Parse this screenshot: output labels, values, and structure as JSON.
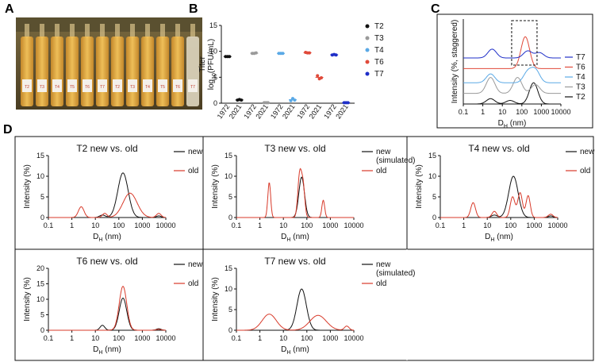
{
  "panel_labels": [
    "A",
    "B",
    "C",
    "D"
  ],
  "colors": {
    "T2": "#111111",
    "T3": "#9a9a9a",
    "T4": "#5aa9e6",
    "T6": "#e04a3a",
    "T7": "#1f2fc8",
    "new": "#111111",
    "old": "#d83a2a"
  },
  "photo": {
    "description_icon": "vials-photo",
    "vial_labels": [
      "T2",
      "T3",
      "T4",
      "T5",
      "T6",
      "T7",
      "T2",
      "T3",
      "T4",
      "T5",
      "T6",
      "T7"
    ]
  },
  "chart_data": [
    {
      "id": "B",
      "type": "scatter",
      "title": "",
      "ylabel": "Titer",
      "ylabel2_parts": [
        "log",
        "10",
        "(PFU/mL)"
      ],
      "ylim": [
        0,
        15
      ],
      "yticks": [
        0,
        5,
        10,
        15
      ],
      "xtick_years": [
        "1972",
        "2021"
      ],
      "legend": [
        "T2",
        "T3",
        "T4",
        "T6",
        "T7"
      ],
      "groups": [
        {
          "phage": "T2",
          "y1972": [
            9.0,
            9.0,
            9.0
          ],
          "y2021": [
            0.6,
            0.7,
            0.6
          ]
        },
        {
          "phage": "T3",
          "y1972": [
            9.6,
            9.6,
            9.7
          ],
          "y2021": [
            0.1,
            0.1,
            0.1
          ]
        },
        {
          "phage": "T4",
          "y1972": [
            9.6,
            9.6,
            9.6
          ],
          "y2021": [
            0.5,
            0.9,
            0.6
          ]
        },
        {
          "phage": "T6",
          "y1972": [
            9.8,
            9.7,
            9.7
          ],
          "y2021": [
            5.3,
            4.7,
            4.9
          ]
        },
        {
          "phage": "T7",
          "y1972": [
            9.3,
            9.4,
            9.3
          ],
          "y2021": [
            0.1,
            0.1,
            0.1
          ]
        }
      ]
    },
    {
      "id": "C",
      "type": "line",
      "ylabel": "Intensity (%, staggered)",
      "xlabel_main": "D",
      "xlabel_sub": "H",
      "xlabel_unit": " (nm)",
      "xscale": "log",
      "xlim": [
        0.1,
        10000
      ],
      "xticks": [
        "0.1",
        "1",
        "10",
        "100",
        "1000",
        "10000"
      ],
      "legend": [
        "T7",
        "T6",
        "T4",
        "T3",
        "T2"
      ],
      "series": [
        {
          "name": "T2",
          "offset": 0,
          "peaks": [
            [
              2.5,
              3
            ],
            [
              25,
              2
            ],
            [
              400,
              12
            ]
          ]
        },
        {
          "name": "T3",
          "offset": 6,
          "peaks": [
            [
              2.5,
              9
            ],
            [
              60,
              9
            ],
            [
              500,
              5
            ]
          ]
        },
        {
          "name": "T4",
          "offset": 12,
          "peaks": [
            [
              2.5,
              5
            ],
            [
              200,
              6
            ],
            [
              500,
              7
            ]
          ]
        },
        {
          "name": "T6",
          "offset": 20,
          "peaks": [
            [
              150,
              18
            ]
          ]
        },
        {
          "name": "T7",
          "offset": 26,
          "peaks": [
            [
              3,
              5
            ],
            [
              200,
              4
            ],
            [
              800,
              3
            ]
          ]
        }
      ],
      "highlight_box": {
        "x_range": [
          30,
          600
        ]
      }
    },
    {
      "id": "D-T2",
      "type": "line",
      "title": "T2 new vs. old",
      "ylabel": "Intensity (%)",
      "ylim": [
        0,
        15
      ],
      "yticks": [
        0,
        5,
        10,
        15
      ],
      "xscale": "log",
      "xlim": [
        0.1,
        10000
      ],
      "xticks": [
        "0.1",
        "1",
        "10",
        "100",
        "1000",
        "10000"
      ],
      "xlabel_main": "D",
      "xlabel_sub": "H",
      "xlabel_unit": " (nm)",
      "legend": [
        "new",
        "old"
      ],
      "series": [
        {
          "name": "new",
          "peaks": [
            [
              20,
              0.6,
              0.12
            ],
            [
              150,
              10.8,
              0.22
            ],
            [
              5000,
              0.4,
              0.1
            ]
          ]
        },
        {
          "name": "old",
          "peaks": [
            [
              2.5,
              2.6,
              0.12
            ],
            [
              25,
              1.0,
              0.1
            ],
            [
              300,
              5.9,
              0.3
            ],
            [
              5000,
              1.0,
              0.1
            ]
          ]
        }
      ]
    },
    {
      "id": "D-T3",
      "type": "line",
      "title": "T3 new vs. old",
      "ylabel": "Intensity (%)",
      "ylim": [
        0,
        15
      ],
      "yticks": [
        0,
        5,
        10,
        15
      ],
      "xscale": "log",
      "xlim": [
        0.1,
        10000
      ],
      "xticks": [
        "0.1",
        "1",
        "10",
        "100",
        "1000",
        "10000"
      ],
      "xlabel_main": "D",
      "xlabel_sub": "H",
      "xlabel_unit": " (nm)",
      "legend": [
        "new (simulated)",
        "old"
      ],
      "series": [
        {
          "name": "new",
          "peaks": [
            [
              60,
              9.8,
              0.12
            ]
          ]
        },
        {
          "name": "old",
          "peaks": [
            [
              2.5,
              8.5,
              0.06
            ],
            [
              50,
              10.8,
              0.08
            ],
            [
              70,
              7.0,
              0.07
            ],
            [
              500,
              4.2,
              0.06
            ]
          ]
        }
      ]
    },
    {
      "id": "D-T4",
      "type": "line",
      "title": "T4 new vs. old",
      "ylabel": "Intensity (%)",
      "ylim": [
        0,
        15
      ],
      "yticks": [
        0,
        5,
        10,
        15
      ],
      "xscale": "log",
      "xlim": [
        0.1,
        10000
      ],
      "xticks": [
        "0.1",
        "1",
        "10",
        "100",
        "1000",
        "10000"
      ],
      "xlabel_main": "D",
      "xlabel_sub": "H",
      "xlabel_unit": " (nm)",
      "legend": [
        "new",
        "old"
      ],
      "series": [
        {
          "name": "new",
          "peaks": [
            [
              20,
              0.6,
              0.12
            ],
            [
              130,
              10.0,
              0.2
            ],
            [
              5000,
              0.4,
              0.1
            ]
          ]
        },
        {
          "name": "old",
          "peaks": [
            [
              2.5,
              3.6,
              0.1
            ],
            [
              20,
              1.5,
              0.1
            ],
            [
              120,
              5.0,
              0.1
            ],
            [
              250,
              6.0,
              0.1
            ],
            [
              550,
              5.3,
              0.09
            ],
            [
              5000,
              0.8,
              0.1
            ]
          ]
        }
      ]
    },
    {
      "id": "D-T6",
      "type": "line",
      "title": "T6 new vs. old",
      "ylabel": "Intensity (%)",
      "ylim": [
        0,
        20
      ],
      "yticks": [
        0,
        5,
        10,
        15,
        20
      ],
      "xscale": "log",
      "xlim": [
        0.1,
        10000
      ],
      "xticks": [
        "0.1",
        "1",
        "10",
        "100",
        "1000",
        "10000"
      ],
      "xlabel_main": "D",
      "xlabel_sub": "H",
      "xlabel_unit": " (nm)",
      "legend": [
        "new",
        "old"
      ],
      "series": [
        {
          "name": "new",
          "peaks": [
            [
              20,
              1.6,
              0.1
            ],
            [
              150,
              10.4,
              0.16
            ],
            [
              5000,
              0.5,
              0.1
            ]
          ]
        },
        {
          "name": "old",
          "peaks": [
            [
              150,
              14.2,
              0.16
            ],
            [
              5000,
              0.3,
              0.1
            ]
          ]
        }
      ]
    },
    {
      "id": "D-T7",
      "type": "line",
      "title": "T7 new vs. old",
      "ylabel": "Intensity (%)",
      "ylim": [
        0,
        15
      ],
      "yticks": [
        0,
        5,
        10,
        15
      ],
      "xscale": "log",
      "xlim": [
        0.1,
        10000
      ],
      "xticks": [
        "0.1",
        "1",
        "10",
        "100",
        "1000",
        "10000"
      ],
      "xlabel_main": "D",
      "xlabel_sub": "H",
      "xlabel_unit": " (nm)",
      "legend": [
        "new (simulated)",
        "old"
      ],
      "series": [
        {
          "name": "new",
          "peaks": [
            [
              60,
              10.0,
              0.2
            ]
          ]
        },
        {
          "name": "old",
          "peaks": [
            [
              2.5,
              3.9,
              0.3
            ],
            [
              300,
              3.6,
              0.35
            ],
            [
              5000,
              1.0,
              0.1
            ]
          ]
        }
      ]
    }
  ]
}
